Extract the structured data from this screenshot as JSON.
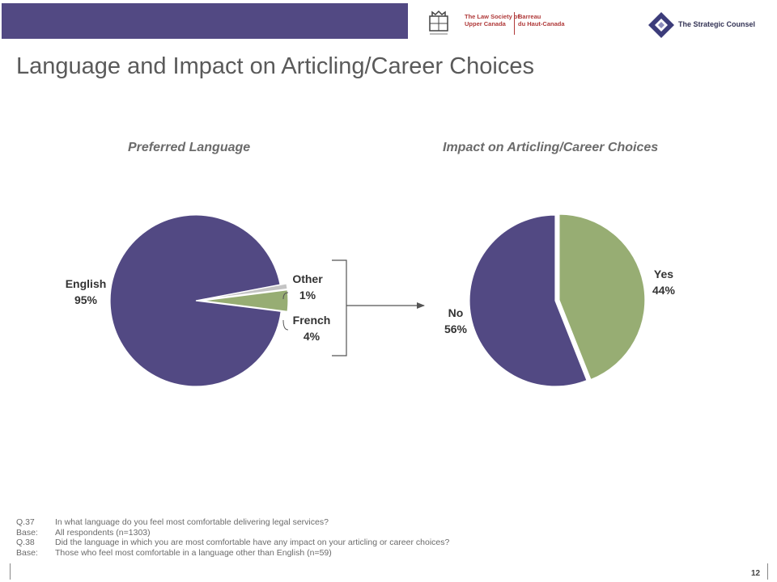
{
  "header": {
    "bar_color": "#524983",
    "lso_name": [
      "The Law Society of",
      "Upper Canada"
    ],
    "lso_name_fr": [
      "Barreau",
      "du Haut-Canada"
    ],
    "counsel_name": "The Strategic Counsel"
  },
  "title": "Language and Impact on Articling/Career Choices",
  "colors": {
    "purple": "#524983",
    "green": "#97ad73",
    "gray": "#c4c4c4"
  },
  "chart_data": [
    {
      "type": "pie",
      "title": "Preferred Language",
      "slices": [
        {
          "label": "English",
          "value": 95,
          "display": "95%",
          "color": "#524983"
        },
        {
          "label": "Other",
          "value": 1,
          "display": "1%",
          "color": "#c4c4c4"
        },
        {
          "label": "French",
          "value": 4,
          "display": "4%",
          "color": "#97ad73"
        }
      ]
    },
    {
      "type": "pie",
      "title": "Impact on Articling/Career Choices",
      "slices": [
        {
          "label": "Yes",
          "value": 44,
          "display": "44%",
          "color": "#97ad73"
        },
        {
          "label": "No",
          "value": 56,
          "display": "56%",
          "color": "#524983"
        }
      ]
    }
  ],
  "footnotes": [
    {
      "code": "Q.37",
      "text": "In what language do you feel most comfortable delivering legal services?"
    },
    {
      "code": "Base:",
      "text": "All respondents (n=1303)"
    },
    {
      "code": "Q.38",
      "text": "Did the language in which you are most comfortable have any impact on your articling or career choices?"
    },
    {
      "code": "Base:",
      "text": "Those who feel most comfortable in a language other than English (n=59)"
    }
  ],
  "page_number": "12"
}
